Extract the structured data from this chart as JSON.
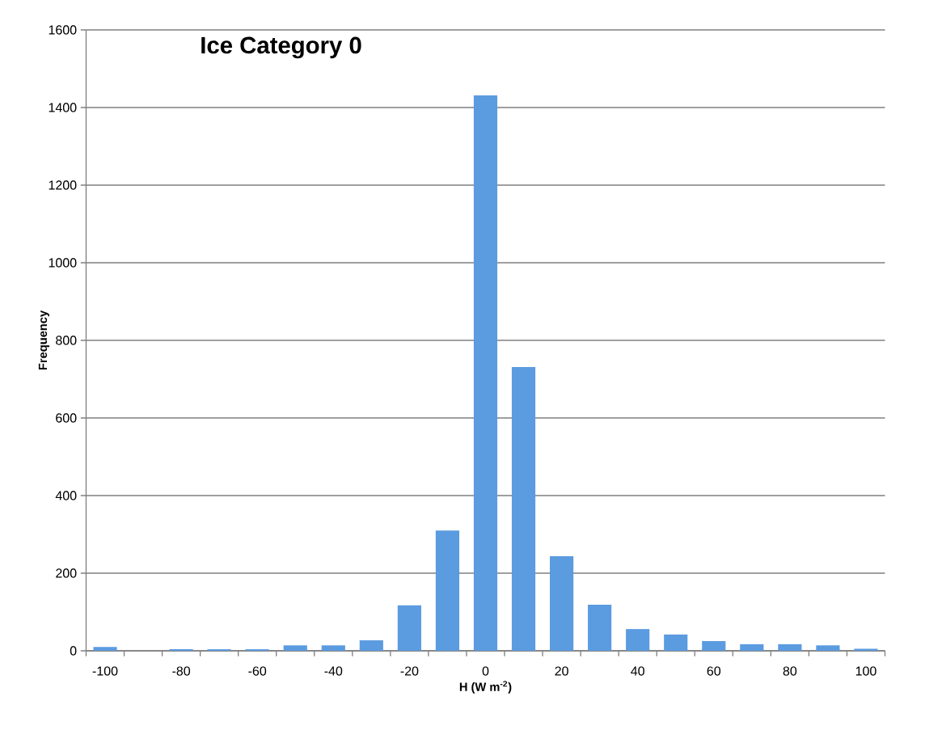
{
  "chart_data": {
    "type": "bar",
    "title": "Ice Category 0",
    "xlabel": "H (W m$^{-2}$)",
    "ylabel": "Frequency",
    "categories": [
      "-100",
      null,
      "-80",
      null,
      "-60",
      null,
      "-40",
      null,
      "-20",
      null,
      "0",
      null,
      "20",
      null,
      "40",
      null,
      "60",
      null,
      "80",
      null,
      "100"
    ],
    "values": [
      10,
      0,
      4,
      4,
      4,
      14,
      14,
      27,
      117,
      310,
      1431,
      731,
      244,
      119,
      56,
      42,
      25,
      17,
      17,
      14,
      5
    ],
    "color": "#5b9be0",
    "ylim": [
      0,
      1600
    ],
    "yticks": [
      0,
      200,
      400,
      600,
      800,
      1000,
      1200,
      1400,
      1600
    ],
    "grid": "y"
  }
}
